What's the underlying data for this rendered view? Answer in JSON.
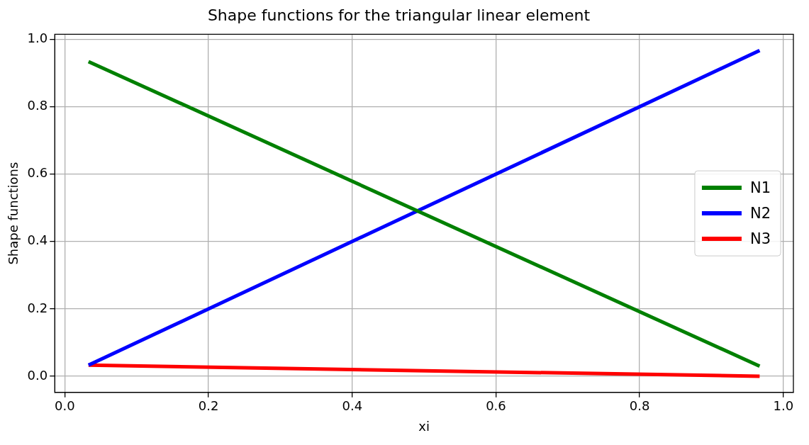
{
  "chart_data": {
    "type": "line",
    "title": "Shape functions for the triangular linear element",
    "xlabel": "xi",
    "ylabel": "Shape functions",
    "x": [
      0.033,
      0.967
    ],
    "series": [
      {
        "name": "N1",
        "color": "#008000",
        "values": [
          0.934,
          0.03
        ]
      },
      {
        "name": "N2",
        "color": "#0000ff",
        "values": [
          0.033,
          0.967
        ]
      },
      {
        "name": "N3",
        "color": "#ff0000",
        "values": [
          0.033,
          0.0
        ]
      }
    ],
    "xlim": [
      -0.014,
      1.014
    ],
    "xticks": [
      {
        "value": 0,
        "label": "0.0"
      },
      {
        "value": 0.2,
        "label": "0.2"
      },
      {
        "value": 0.4,
        "label": "0.4"
      },
      {
        "value": 0.6,
        "label": "0.6"
      },
      {
        "value": 0.8,
        "label": "0.8"
      },
      {
        "value": 1,
        "label": "1.0"
      }
    ],
    "ylim": [
      -0.048,
      1.015
    ],
    "yticks": [
      {
        "value": 0,
        "label": "0.0"
      },
      {
        "value": 0.2,
        "label": "0.2"
      },
      {
        "value": 0.4,
        "label": "0.4"
      },
      {
        "value": 0.6,
        "label": "0.6"
      },
      {
        "value": 0.8,
        "label": "0.8"
      },
      {
        "value": 1,
        "label": "1.0"
      }
    ],
    "grid": true,
    "legend": "right",
    "marker": "none",
    "line_style": "solid"
  }
}
